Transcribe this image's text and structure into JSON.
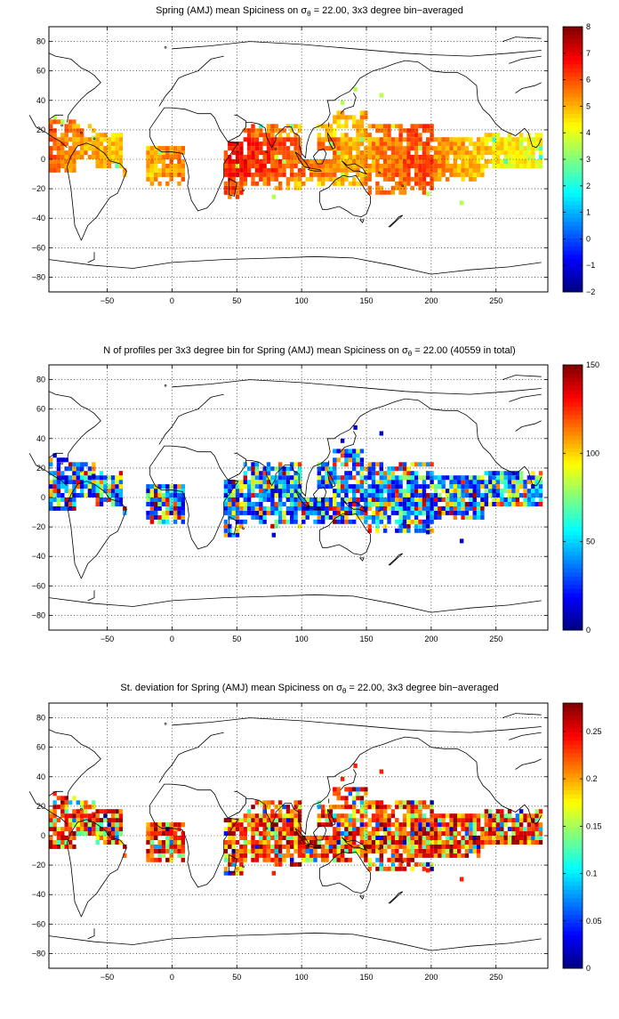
{
  "chart_data": [
    {
      "type": "heatmap",
      "title_pre": "Spring (AMJ) mean Spiciness on σ",
      "title_sub": "θ",
      "title_post": " = 22.00, 3x3 degree bin−averaged",
      "xlim": [
        -95,
        290
      ],
      "ylim": [
        -90,
        90
      ],
      "xticks": [
        "−50",
        "0",
        "50",
        "100",
        "150",
        "200",
        "250"
      ],
      "yticks": [
        "80",
        "60",
        "40",
        "20",
        "0",
        "−20",
        "−40",
        "−60",
        "−80"
      ],
      "grid": true,
      "colorbar": {
        "min": -2,
        "max": 8,
        "ticks": [
          "8",
          "7",
          "6",
          "5",
          "4",
          "3",
          "2",
          "1",
          "0",
          "−1",
          "−2"
        ]
      },
      "field": "mean"
    },
    {
      "type": "heatmap",
      "title_pre": "N of profiles per 3x3 degree bin for Spring (AMJ) mean Spiciness on σ",
      "title_sub": "θ",
      "title_post": " = 22.00 (40559 in total)",
      "xlim": [
        -95,
        290
      ],
      "ylim": [
        -90,
        90
      ],
      "xticks": [
        "−50",
        "0",
        "50",
        "100",
        "150",
        "200",
        "250"
      ],
      "yticks": [
        "80",
        "60",
        "40",
        "20",
        "0",
        "−20",
        "−40",
        "−60",
        "−80"
      ],
      "grid": true,
      "colorbar": {
        "min": 0,
        "max": 150,
        "ticks": [
          "150",
          "100",
          "50",
          "0"
        ]
      },
      "field": "count"
    },
    {
      "type": "heatmap",
      "title_pre": "St. deviation for Spring (AMJ) mean Spiciness on σ",
      "title_sub": "θ",
      "title_post": " = 22.00, 3x3 degree bin−averaged",
      "xlim": [
        -95,
        290
      ],
      "ylim": [
        -90,
        90
      ],
      "xticks": [
        "−50",
        "0",
        "50",
        "100",
        "150",
        "200",
        "250"
      ],
      "yticks": [
        "80",
        "60",
        "40",
        "20",
        "0",
        "−20",
        "−40",
        "−60",
        "−80"
      ],
      "grid": true,
      "colorbar": {
        "min": 0,
        "max": 0.28,
        "ticks": [
          "0.25",
          "0.2",
          "0.15",
          "0.1",
          "0.05",
          "0"
        ]
      },
      "field": "std"
    }
  ],
  "colors": {
    "axis": "#000000",
    "grid": "#000000",
    "background": "#ffffff",
    "colormap": "jet"
  }
}
